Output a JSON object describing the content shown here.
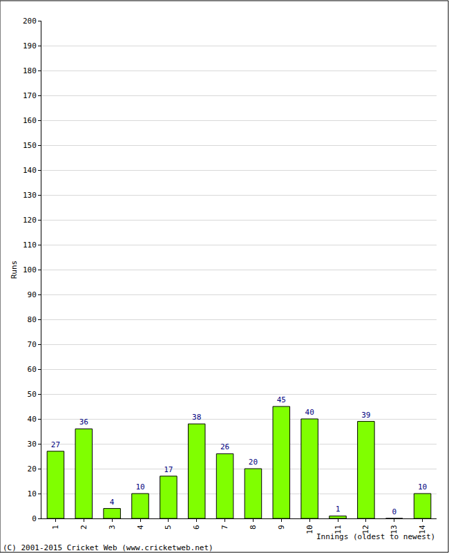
{
  "chart_data": {
    "type": "bar",
    "x_label": "Innings (oldest to newest)",
    "y_label": "Runs",
    "categories": [
      "1",
      "2",
      "3",
      "4",
      "5",
      "6",
      "7",
      "8",
      "9",
      "10",
      "11",
      "12",
      "13",
      "14"
    ],
    "values": [
      27,
      36,
      4,
      10,
      17,
      38,
      26,
      20,
      45,
      40,
      1,
      39,
      0,
      10
    ],
    "color": "#80ff00",
    "ylim": [
      0,
      200
    ],
    "yticks": [
      0,
      10,
      20,
      30,
      40,
      50,
      60,
      70,
      80,
      90,
      100,
      110,
      120,
      130,
      140,
      150,
      160,
      170,
      180,
      190,
      200
    ],
    "grid": true,
    "data_labels": true,
    "annotations": [
      "(C) 2001-2015 Cricket Web (www.cricketweb.net)"
    ]
  }
}
